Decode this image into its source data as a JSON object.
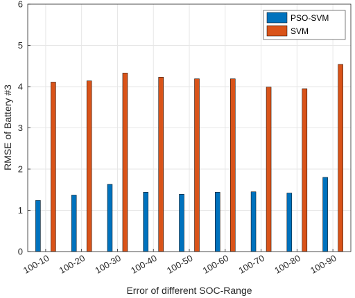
{
  "chart_data": {
    "type": "bar",
    "title": "",
    "xlabel": "Error of different SOC-Range",
    "ylabel": "RMSE of Battery #3",
    "categories": [
      "100-10",
      "100-20",
      "100-30",
      "100-40",
      "100-50",
      "100-60",
      "100-70",
      "100-80",
      "100-90"
    ],
    "ylim": [
      0,
      6
    ],
    "yticks": [
      "0",
      "1",
      "2",
      "3",
      "4",
      "5",
      "6"
    ],
    "grid": true,
    "legend_position": "top-right",
    "series": [
      {
        "name": "PSO-SVM",
        "color": "#0072BD",
        "values": [
          1.24,
          1.37,
          1.63,
          1.44,
          1.39,
          1.44,
          1.45,
          1.42,
          1.8
        ]
      },
      {
        "name": "SVM",
        "color": "#D95319",
        "values": [
          4.11,
          4.14,
          4.33,
          4.23,
          4.19,
          4.19,
          3.99,
          3.95,
          4.54
        ]
      }
    ]
  }
}
